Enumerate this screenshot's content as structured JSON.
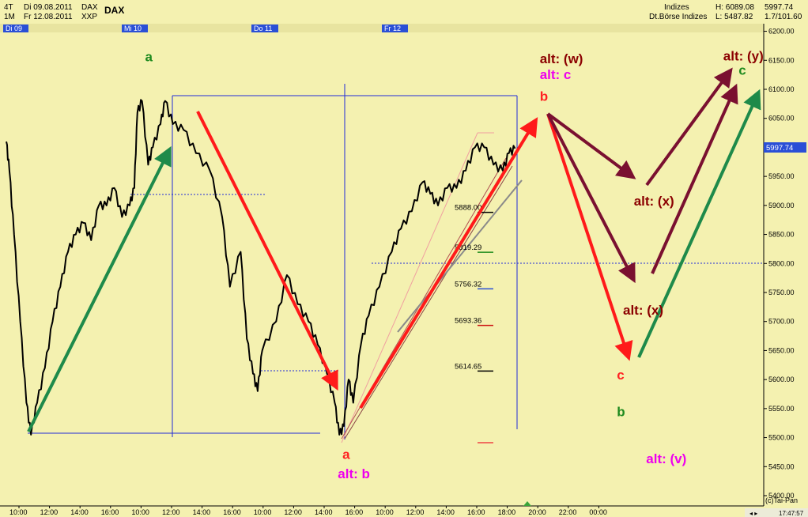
{
  "header": {
    "timeframe": "4T",
    "date_from": "Di 09.08.2011",
    "symbol_code": "DAX",
    "period": "1M",
    "date_to": "Fr 12.08.2011",
    "exchange_code": "XXP",
    "instrument": "DAX",
    "category": "Indizes",
    "exchange_name": "Dt.Börse Indizes",
    "last_price": "5997.74",
    "high": "H: 6089.08",
    "low": "L: 5487.82",
    "ratio": "1.7/101.60"
  },
  "day_labels": [
    "Di 09",
    "Mi 10",
    "Do 11",
    "Fr 12"
  ],
  "current_price_tag": "5997.74",
  "copyright": "(c)Tai-Pan",
  "clock": "17:47:57",
  "chart_data": {
    "type": "line",
    "instrument": "DAX",
    "y_range": [
      5400,
      6200
    ],
    "y_ticks": [
      5400,
      5450,
      5500,
      5550,
      5600,
      5650,
      5700,
      5750,
      5800,
      5850,
      5900,
      5950,
      6000,
      6050,
      6100,
      6150,
      6200
    ],
    "x_ticks": [
      "10:00",
      "12:00",
      "14:00",
      "16:00",
      "10:00",
      "12:00",
      "14:00",
      "16:00",
      "10:00",
      "12:00",
      "14:00",
      "16:00",
      "10:00",
      "12:00",
      "14:00",
      "16:00",
      "18:00",
      "20:00",
      "22:00",
      "00:00"
    ],
    "price_path": [
      [
        0.0,
        6010
      ],
      [
        0.2,
        5960
      ],
      [
        0.5,
        5850
      ],
      [
        0.9,
        5700
      ],
      [
        1.3,
        5560
      ],
      [
        1.6,
        5505
      ],
      [
        2.0,
        5560
      ],
      [
        2.5,
        5620
      ],
      [
        3.0,
        5700
      ],
      [
        3.5,
        5760
      ],
      [
        4.0,
        5820
      ],
      [
        4.5,
        5850
      ],
      [
        5.0,
        5870
      ],
      [
        5.5,
        5840
      ],
      [
        6.0,
        5900
      ],
      [
        6.5,
        5900
      ],
      [
        7.0,
        5930
      ],
      [
        7.5,
        5880
      ],
      [
        8.0,
        5900
      ],
      [
        8.3,
        5930
      ],
      [
        8.5,
        6060
      ],
      [
        8.8,
        6080
      ],
      [
        9.2,
        5970
      ],
      [
        9.5,
        6000
      ],
      [
        10.0,
        6040
      ],
      [
        10.3,
        6080
      ],
      [
        10.8,
        6040
      ],
      [
        11.5,
        6030
      ],
      [
        12.3,
        5990
      ],
      [
        13.2,
        5960
      ],
      [
        14.0,
        5880
      ],
      [
        14.5,
        5760
      ],
      [
        15.2,
        5820
      ],
      [
        15.6,
        5670
      ],
      [
        16.0,
        5610
      ],
      [
        16.3,
        5580
      ],
      [
        16.6,
        5650
      ],
      [
        17.5,
        5700
      ],
      [
        18.2,
        5780
      ],
      [
        18.9,
        5730
      ],
      [
        19.6,
        5700
      ],
      [
        20.2,
        5660
      ],
      [
        20.8,
        5610
      ],
      [
        21.3,
        5560
      ],
      [
        21.6,
        5505
      ],
      [
        21.9,
        5520
      ],
      [
        22.2,
        5600
      ],
      [
        22.5,
        5560
      ],
      [
        23.0,
        5660
      ],
      [
        23.5,
        5710
      ],
      [
        24.2,
        5760
      ],
      [
        25.0,
        5820
      ],
      [
        25.6,
        5860
      ],
      [
        26.3,
        5890
      ],
      [
        27.0,
        5940
      ],
      [
        27.5,
        5920
      ],
      [
        28.0,
        5900
      ],
      [
        28.6,
        5930
      ],
      [
        29.2,
        5930
      ],
      [
        29.8,
        5960
      ],
      [
        30.4,
        6000
      ],
      [
        31.0,
        6000
      ],
      [
        31.6,
        5970
      ],
      [
        32.2,
        5960
      ],
      [
        32.6,
        5990
      ],
      [
        33.0,
        5998
      ]
    ],
    "fib_levels": [
      {
        "label": "5888.00",
        "value": 5888
      },
      {
        "label": "5819.29",
        "value": 5819.29
      },
      {
        "label": "5756.32",
        "value": 5756.32
      },
      {
        "label": "5693.36",
        "value": 5693.36
      },
      {
        "label": "5614.65",
        "value": 5614.65
      }
    ],
    "wave_labels": [
      {
        "text": "a",
        "color": "#1e8a1e",
        "x": 9.0,
        "y": 6148
      },
      {
        "text": "alt: (w)",
        "color": "#8b0000",
        "x": 34.6,
        "y": 6145
      },
      {
        "text": "alt: c",
        "color": "#ee00ee",
        "x": 34.6,
        "y": 6118
      },
      {
        "text": "b",
        "color": "#ff2222",
        "x": 34.6,
        "y": 6080
      },
      {
        "text": "alt: (y)",
        "color": "#8b0000",
        "x": 46.5,
        "y": 6150
      },
      {
        "text": "c",
        "color": "#1e8a1e",
        "x": 47.5,
        "y": 6125
      },
      {
        "text": "alt: (x)",
        "color": "#8b0000",
        "x": 40.7,
        "y": 5900
      },
      {
        "text": "alt: (x)",
        "color": "#8b0000",
        "x": 40.0,
        "y": 5712
      },
      {
        "text": "c",
        "color": "#ff2222",
        "x": 39.6,
        "y": 5600
      },
      {
        "text": "b",
        "color": "#1e8a1e",
        "x": 39.6,
        "y": 5537
      },
      {
        "text": "alt: (v)",
        "color": "#ee00ee",
        "x": 41.5,
        "y": 5456
      },
      {
        "text": "a",
        "color": "#ff2222",
        "x": 21.8,
        "y": 5463
      },
      {
        "text": "alt: b",
        "color": "#ee00ee",
        "x": 21.5,
        "y": 5430
      }
    ]
  }
}
